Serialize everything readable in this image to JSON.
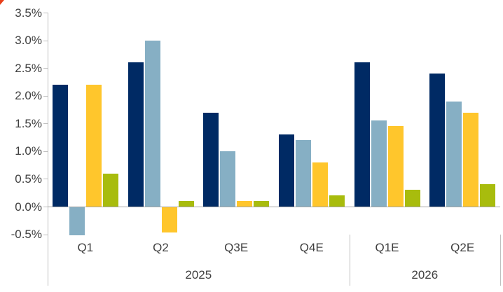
{
  "page": {
    "background": "#ffffff",
    "corner_artifact_color": "#e8401c"
  },
  "chart_data": {
    "type": "bar",
    "title": "",
    "categories": [
      "Q1",
      "Q2",
      "Q3E",
      "Q4E",
      "Q1E",
      "Q2E"
    ],
    "category_groups": [
      {
        "label": "2025",
        "count": 4
      },
      {
        "label": "2026",
        "count": 2
      }
    ],
    "series": [
      {
        "name": "navy",
        "color": "#002a64",
        "values": [
          2.2,
          2.6,
          1.7,
          1.3,
          2.6,
          2.4
        ]
      },
      {
        "name": "light-blue",
        "color": "#86afc4",
        "values": [
          -0.5,
          3.0,
          1.0,
          1.2,
          1.55,
          1.9
        ]
      },
      {
        "name": "gold",
        "color": "#ffc62c",
        "values": [
          2.2,
          -0.45,
          0.1,
          0.8,
          1.45,
          1.7
        ]
      },
      {
        "name": "green",
        "color": "#a8bc0d",
        "values": [
          0.6,
          0.1,
          0.1,
          0.2,
          0.3,
          0.4
        ]
      }
    ],
    "ylim": [
      -0.5,
      3.5
    ],
    "ytick_step": 0.5,
    "ytick_labels": [
      "3.5%",
      "3.0%",
      "2.5%",
      "2.0%",
      "1.5%",
      "1.0%",
      "0.5%",
      "0.0%",
      "-0.5%"
    ],
    "value_unit": "percent",
    "legend": "none",
    "grid": "zero-line-only",
    "axis_color": "#bfbfbf",
    "zero_line_color": "#a6a6a6",
    "text_color": "#3f3f3f"
  }
}
